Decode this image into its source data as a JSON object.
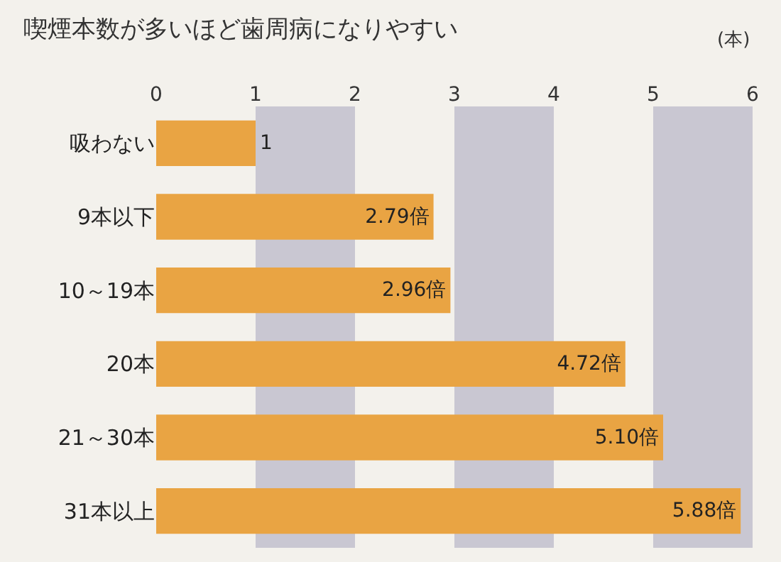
{
  "chart_data": {
    "type": "bar",
    "orientation": "horizontal",
    "title": "喫煙本数が多いほど歯周病になりやすい",
    "xlabel": "(本)",
    "categories": [
      "吸わない",
      "9本以下",
      "10～19本",
      "20本",
      "21～30本",
      "31本以上"
    ],
    "values": [
      1,
      2.79,
      2.96,
      4.72,
      5.1,
      5.88
    ],
    "value_labels": [
      "1",
      "2.79倍",
      "2.96倍",
      "4.72倍",
      "5.10倍",
      "5.88倍"
    ],
    "color": "#e9a443",
    "xlim": [
      0,
      6
    ],
    "xticks": [
      0,
      1,
      2,
      3,
      4,
      5,
      6
    ],
    "bands": [
      {
        "axis": "x",
        "from": 1,
        "to": 2,
        "color": "#c9c7d2"
      },
      {
        "axis": "x",
        "from": 3,
        "to": 4,
        "color": "#c9c7d2"
      },
      {
        "axis": "x",
        "from": 5,
        "to": 6,
        "color": "#c9c7d2"
      }
    ],
    "grid": false
  }
}
